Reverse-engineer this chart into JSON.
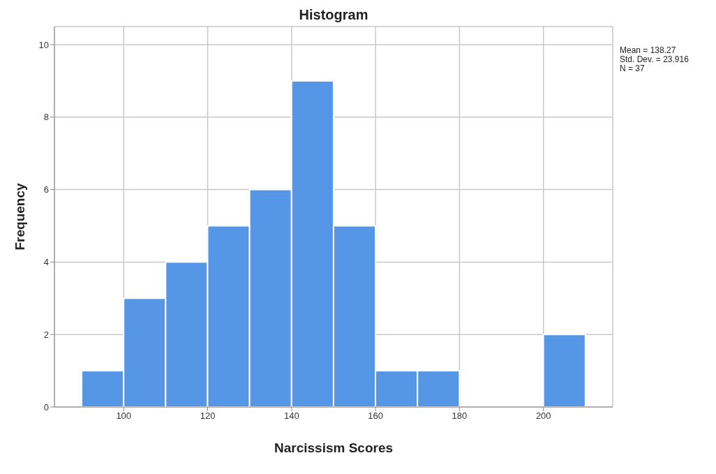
{
  "chart_data": {
    "type": "histogram",
    "title": "Histogram",
    "xlabel": "Narcissism Scores",
    "ylabel": "Frequency",
    "bins": [
      90,
      100,
      110,
      120,
      130,
      140,
      150,
      160,
      170,
      180,
      190,
      200,
      210
    ],
    "values": [
      1,
      3,
      4,
      5,
      6,
      9,
      5,
      1,
      1,
      0,
      0,
      2
    ],
    "color": "#5596e6",
    "xlim": [
      83.5,
      216.5
    ],
    "xticks": [
      100,
      120,
      140,
      160,
      180,
      200
    ],
    "ylim": [
      0,
      10.5
    ],
    "yticks": [
      0,
      2,
      4,
      6,
      8,
      10
    ],
    "grid": true,
    "annotations": [
      "Mean = 138.27",
      "Std. Dev. = 23.916",
      "N = 37"
    ]
  }
}
